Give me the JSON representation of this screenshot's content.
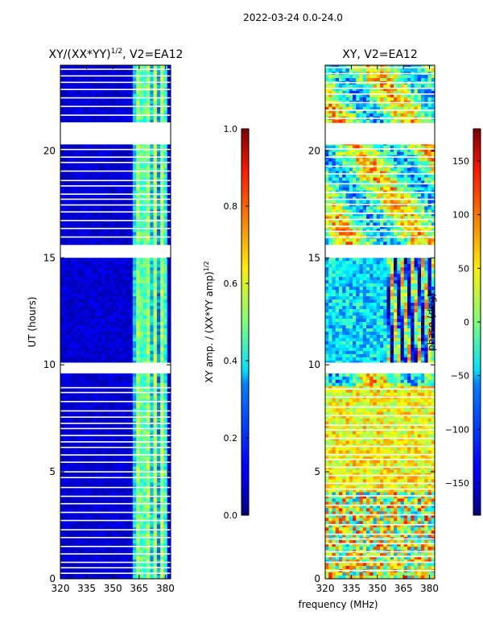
{
  "figure": {
    "suptitle": "2022-03-24 0.0-24.0",
    "xlabel": "frequency (MHz)",
    "ylabel": "UT (hours)"
  },
  "chart_data": [
    {
      "type": "heatmap",
      "title": "XY/(XX*YY)",
      "title_exponent": "1/2",
      "title_suffix": ", V2=EA12",
      "xlim": [
        320,
        383
      ],
      "ylim": [
        0,
        24
      ],
      "xticks": [
        320,
        335,
        350,
        365,
        380
      ],
      "yticks": [
        0,
        5,
        10,
        15,
        20
      ],
      "colormap": "jet",
      "colorbar": {
        "label": "XY amp. / (XX*YY amp)",
        "label_exponent": "1/2",
        "range": [
          0.0,
          1.0
        ],
        "ticks": [
          "0.0",
          "0.2",
          "0.4",
          "0.6",
          "0.8",
          "1.0"
        ],
        "tick_values": [
          0.0,
          0.2,
          0.4,
          0.6,
          0.8,
          1.0
        ]
      },
      "blank_ut_ranges": [
        [
          20.3,
          21.3
        ],
        [
          15.0,
          15.6
        ],
        [
          9.6,
          10.1
        ]
      ]
    },
    {
      "type": "heatmap",
      "title": "XY, V2=EA12",
      "xlim": [
        320,
        383
      ],
      "ylim": [
        0,
        24
      ],
      "xticks": [
        320,
        335,
        350,
        365,
        380
      ],
      "yticks": [
        0,
        5,
        10,
        15,
        20
      ],
      "colormap": "jet",
      "colorbar": {
        "label": "phase (deg)",
        "range": [
          -180,
          180
        ],
        "ticks": [
          "150",
          "100",
          "50",
          "0",
          "−50",
          "−100",
          "−150"
        ],
        "tick_values": [
          150,
          100,
          50,
          0,
          -50,
          -100,
          -150
        ]
      },
      "blank_ut_ranges": [
        [
          20.3,
          21.3
        ],
        [
          15.0,
          15.6
        ],
        [
          9.6,
          10.1
        ]
      ]
    }
  ]
}
